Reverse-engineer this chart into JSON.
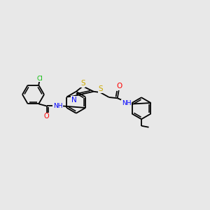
{
  "background_color": "#e8e8e8",
  "bond_color": "#000000",
  "atom_colors": {
    "N": "#0000ff",
    "O": "#ff0000",
    "S": "#ccaa00",
    "Cl": "#00bb00",
    "C": "#000000",
    "H": "#000000"
  },
  "font_size": 6.5,
  "figsize": [
    3.0,
    3.0
  ],
  "dpi": 100,
  "xlim": [
    0,
    12
  ],
  "ylim": [
    0,
    10
  ]
}
